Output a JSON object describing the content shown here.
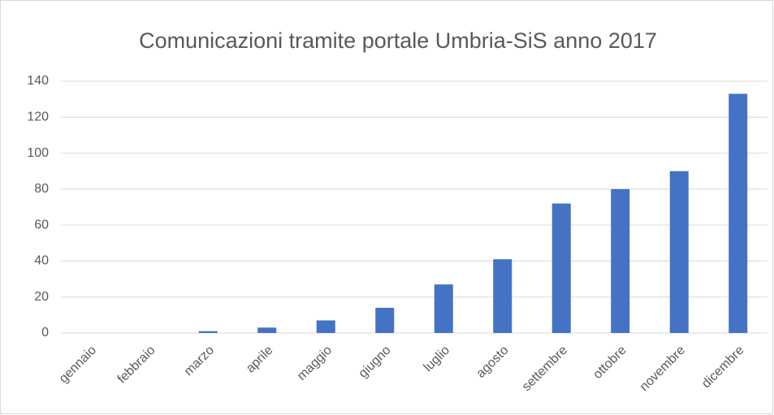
{
  "chart_data": {
    "type": "bar",
    "title": "Comunicazioni tramite portale Umbria-SiS anno 2017",
    "categories": [
      "gennaio",
      "febbraio",
      "marzo",
      "aprile",
      "maggio",
      "giugno",
      "luglio",
      "agosto",
      "settembre",
      "ottobre",
      "novembre",
      "dicembre"
    ],
    "values": [
      0,
      0,
      1,
      3,
      7,
      14,
      27,
      41,
      72,
      80,
      90,
      133
    ],
    "color": "#4472c4",
    "ylim": [
      0,
      140
    ],
    "yticks": [
      0,
      20,
      40,
      60,
      80,
      100,
      120,
      140
    ],
    "grid": true
  }
}
